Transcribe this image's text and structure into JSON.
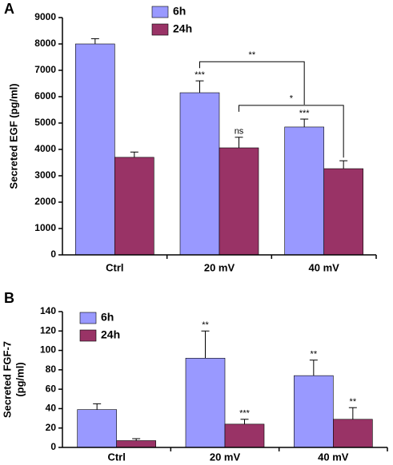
{
  "chart_data": [
    {
      "type": "bar",
      "panel_label": "A",
      "ylabel": [
        "Secreted EGF (pg/ml)"
      ],
      "categories": [
        "Ctrl",
        "20 mV",
        "40 mV"
      ],
      "series": [
        {
          "name": "6h",
          "color": "#9999ff",
          "values": [
            8000,
            6150,
            4850
          ],
          "errors": [
            200,
            450,
            300
          ],
          "significance": [
            null,
            "***",
            "***"
          ]
        },
        {
          "name": "24h",
          "color": "#993366",
          "values": [
            3700,
            4060,
            3270
          ],
          "errors": [
            200,
            400,
            300
          ],
          "significance": [
            null,
            "ns",
            null
          ]
        }
      ],
      "brackets": [
        {
          "label": "**",
          "from": [
            0,
            1
          ],
          "to": [
            0,
            2
          ]
        },
        {
          "label": "*",
          "from": [
            1,
            1
          ],
          "to": [
            1,
            2
          ]
        }
      ],
      "ylim": [
        0,
        9000
      ],
      "yticks": [
        0,
        1000,
        2000,
        3000,
        4000,
        5000,
        6000,
        7000,
        8000,
        9000
      ],
      "grid": false
    },
    {
      "type": "bar",
      "panel_label": "B",
      "ylabel": [
        "Secreted FGF-7",
        "(pg/ml)"
      ],
      "categories": [
        "Ctrl",
        "20 mV",
        "40 mV"
      ],
      "series": [
        {
          "name": "6h",
          "color": "#9999ff",
          "values": [
            39,
            92,
            74
          ],
          "errors": [
            6,
            28,
            16
          ],
          "significance": [
            null,
            "**",
            "**"
          ]
        },
        {
          "name": "24h",
          "color": "#993366",
          "values": [
            7,
            24,
            29
          ],
          "errors": [
            2,
            5,
            12
          ],
          "significance": [
            null,
            "***",
            "**"
          ]
        }
      ],
      "brackets": [],
      "ylim": [
        0,
        140
      ],
      "yticks": [
        0,
        20,
        40,
        60,
        80,
        100,
        120,
        140
      ],
      "grid": false
    }
  ]
}
